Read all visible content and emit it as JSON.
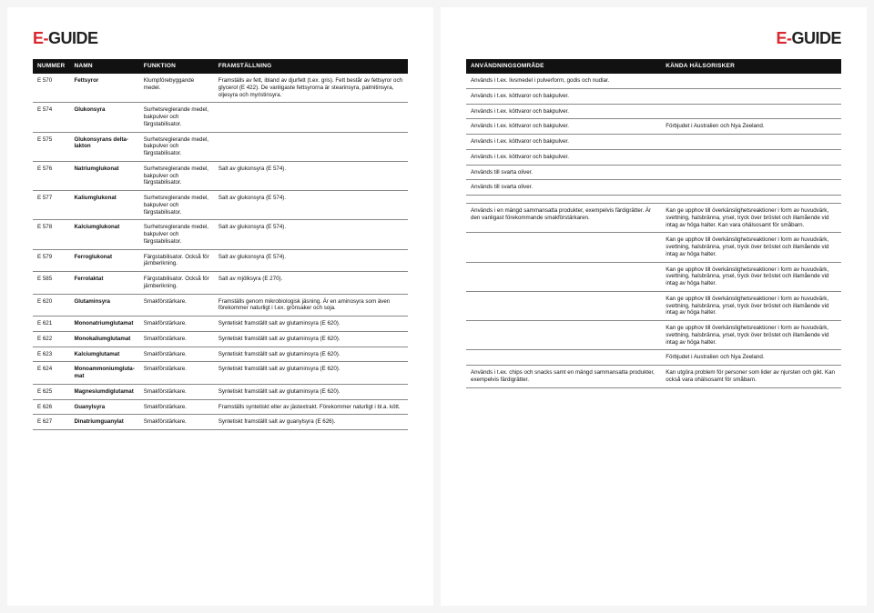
{
  "brand": {
    "e": "E",
    "dash": "-",
    "guide": "GUIDE"
  },
  "headers_left": [
    "NUMMER",
    "NAMN",
    "FUNKTION",
    "FRAMSTÄLLNING"
  ],
  "headers_right": [
    "ANVÄNDNINGSOMRÅDE",
    "KÄNDA HÄLSORISKER"
  ],
  "rows": [
    {
      "num": "E 570",
      "name": "Fettsyror",
      "func": "Klumpförebyggande medel.",
      "fram": "Framställs av fett, ibland av djurfett (t.ex. gris). Fett består av fettsyror och glycerol (E 422). De vanligaste fettsyrorna är stearinsyra, palmitin­syra, oljesyra och myristinsyra.",
      "anv": "Används i t.ex. livsmedel i pulverform, godis och nudlar.",
      "risk": ""
    },
    {
      "num": "E 574",
      "name": "Glukonsyra",
      "func": "Surhetsreglerande medel, bakpulver och färgstabilisator.",
      "fram": "",
      "anv": "Används i t.ex. köttvaror och bakpulver.",
      "risk": ""
    },
    {
      "num": "E 575",
      "name": "Glukonsyrans delta­lakton",
      "func": "Surhetsreglerande medel, bakpulver och färgstabilisator.",
      "fram": "",
      "anv": "Används i t.ex. köttvaror och bakpulver.",
      "risk": ""
    },
    {
      "num": "E 576",
      "name": "Natriumglukonat",
      "func": "Surhetsreglerande medel, bakpulver och färgstabilisator.",
      "fram": "Salt av glukonsyra (E 574).",
      "anv": "Används i t.ex. köttvaror och bakpulver.",
      "risk": "Förbjudet i Australien och Nya Zeeland."
    },
    {
      "num": "E 577",
      "name": "Kaliumglukonat",
      "func": "Surhetsreglerande medel, bakpulver och färgstabilisator.",
      "fram": "Salt av glukonsyra (E 574).",
      "anv": "Används i t.ex. köttvaror och bakpulver.",
      "risk": ""
    },
    {
      "num": "E 578",
      "name": "Kalciumglukonat",
      "func": "Surhetsreglerande medel, bakpulver och färgstabilisator.",
      "fram": "Salt av glukonsyra (E 574).",
      "anv": "Används i t.ex. köttvaror och bakpulver.",
      "risk": ""
    },
    {
      "num": "E 579",
      "name": "Ferroglukonat",
      "func": "Färgstabilisator. Också för järnberikning.",
      "fram": "Salt av glukonsyra (E 574).",
      "anv": "Används till svarta oliver.",
      "risk": ""
    },
    {
      "num": "E 585",
      "name": "Ferrolaktat",
      "func": "Färgstabilisator. Också för järnberikning.",
      "fram": "Salt av mjölksyra (E 270).",
      "anv": "Används till svarta oliver.",
      "risk": ""
    },
    {
      "num": "E 620",
      "name": "Glutaminsyra",
      "func": "Smakförstärkare.",
      "fram": "Framställs genom mikrobiologisk jäsning. Är en aminosyra som även förekommer naturligt i t.ex. grönsaker och soja.",
      "anv": "",
      "risk": ""
    },
    {
      "num": "E 621",
      "name": "Mononatriumglutamat",
      "func": "Smakförstärkare.",
      "fram": "Syntetiskt framställt salt av gluta­minsyra (E 620).",
      "anv": "Används i en mängd sammansatta pro­dukter, exempelvis färdigrätter. Är den vanligast förekommande smak­förstärkaren.",
      "risk": "Kan ge upphov till överkänslighetsreaktioner i form av huvudvärk, svettning, halsbränna, yrsel, tryck över bröstet och illamående vid intag av höga halter. Kan vara ohälsosamt för småbarn."
    },
    {
      "num": "E 622",
      "name": "Monokaliumglutamat",
      "func": "Smakförstärkare.",
      "fram": "Syntetiskt framställt salt av gluta­minsyra (E 620).",
      "anv": "",
      "risk": "Kan ge upphov till överkänslighetsreaktioner i form av huvudvärk, svettning, halsbränna, yrsel, tryck över bröstet och illamående vid intag av höga halter."
    },
    {
      "num": "E 623",
      "name": "Kalciumglutamat",
      "func": "Smakförstärkare.",
      "fram": "Syntetiskt framställt salt av gluta­minsyra (E 620).",
      "anv": "",
      "risk": "Kan ge upphov till överkänslighetsreaktioner i form av huvudvärk, svettning, halsbränna, yrsel, tryck över bröstet och illamående vid intag av höga halter."
    },
    {
      "num": "E 624",
      "name": "Monoammoniumgluta­mat",
      "func": "Smakförstärkare.",
      "fram": "Syntetiskt framställt salt av gluta­minsyra (E 620).",
      "anv": "",
      "risk": "Kan ge upphov till överkänslighetsreaktioner i form av huvudvärk, svettning, halsbränna, yrsel, tryck över bröstet och illamående vid intag av höga halter."
    },
    {
      "num": "E 625",
      "name": "Magnesiumdiglutamat",
      "func": "Smakförstärkare.",
      "fram": "Syntetiskt framställt salt av gluta­minsyra (E 620).",
      "anv": "",
      "risk": "Kan ge upphov till överkänslighetsreaktioner i form av huvudvärk, svettning, halsbränna, yrsel, tryck över bröstet och illamående vid intag av höga halter."
    },
    {
      "num": "E 626",
      "name": "Guanylsyra",
      "func": "Smakförstärkare.",
      "fram": "Framställs syntetiskt eller av jäst­extrakt. Förekommer naturligt i bl.a. kött.",
      "anv": "",
      "risk": "Förbjudet i Australien och Nya Zeeland."
    },
    {
      "num": "E 627",
      "name": "Dinatriumguanylat",
      "func": "Smakförstärkare.",
      "fram": "Syntetiskt framställt salt av guanylsyra (E 626).",
      "anv": "Används i t.ex. chips och snacks samt en mängd sammansatta produkter, exempelvis färdigrätter.",
      "risk": "Kan utgöra problem för personer som lider av njursten och gikt. Kan också vara ohälsosamt för småbarn."
    }
  ]
}
